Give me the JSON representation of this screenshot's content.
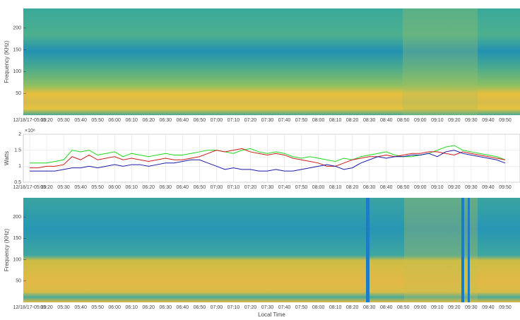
{
  "chart_data": [
    {
      "type": "spectrogram",
      "ylabel": "Frequency (KHz)",
      "ylim": [
        0,
        245
      ],
      "yticks": [
        50,
        100,
        150,
        200
      ],
      "xticks": [
        "12/18/17-05:10",
        "05:20",
        "05:30",
        "05:40",
        "05:50",
        "06:00",
        "06:10",
        "06:20",
        "06:30",
        "06:40",
        "06:50",
        "07:00",
        "07:10",
        "07:20",
        "07:30",
        "07:40",
        "07:50",
        "08:00",
        "08:10",
        "08:20",
        "08:30",
        "08:40",
        "08:50",
        "09:00",
        "09:10",
        "09:20",
        "09:30",
        "09:40",
        "09:50"
      ]
    },
    {
      "type": "line",
      "ylabel": "Watts",
      "y_multiplier": "×10⁸",
      "ylim": [
        0.5,
        2
      ],
      "yticks": [
        0.5,
        1,
        1.5,
        2
      ],
      "grid": true,
      "xticks": [
        "12/18/17-05:10",
        "05:20",
        "05:30",
        "05:40",
        "05:50",
        "06:00",
        "06:10",
        "06:20",
        "06:30",
        "06:40",
        "06:50",
        "07:00",
        "07:10",
        "07:20",
        "07:30",
        "07:40",
        "07:50",
        "08:00",
        "08:10",
        "08:20",
        "08:30",
        "08:40",
        "08:50",
        "09:00",
        "09:10",
        "09:20",
        "09:30",
        "09:40",
        "09:50"
      ],
      "series": [
        {
          "color": "#1fd81f",
          "values": [
            1.1,
            1.1,
            1.1,
            1.15,
            1.2,
            1.5,
            1.45,
            1.5,
            1.35,
            1.4,
            1.45,
            1.3,
            1.4,
            1.35,
            1.3,
            1.35,
            1.4,
            1.35,
            1.35,
            1.4,
            1.45,
            1.5,
            1.5,
            1.45,
            1.4,
            1.5,
            1.55,
            1.45,
            1.4,
            1.45,
            1.4,
            1.3,
            1.25,
            1.3,
            1.25,
            1.2,
            1.15,
            1.25,
            1.2,
            1.3,
            1.35,
            1.4,
            1.45,
            1.35,
            1.3,
            1.3,
            1.35,
            1.4,
            1.5,
            1.6,
            1.65,
            1.5,
            1.45,
            1.4,
            1.35,
            1.3,
            1.2
          ]
        },
        {
          "color": "#cc1a1a",
          "values": [
            0.95,
            0.95,
            1.0,
            1.0,
            1.05,
            1.3,
            1.2,
            1.35,
            1.2,
            1.25,
            1.3,
            1.2,
            1.25,
            1.2,
            1.15,
            1.2,
            1.25,
            1.2,
            1.2,
            1.25,
            1.3,
            1.4,
            1.5,
            1.45,
            1.5,
            1.55,
            1.45,
            1.4,
            1.35,
            1.4,
            1.35,
            1.25,
            1.2,
            1.15,
            1.1,
            1.0,
            1.0,
            1.1,
            1.2,
            1.25,
            1.3,
            1.3,
            1.35,
            1.3,
            1.35,
            1.4,
            1.4,
            1.45,
            1.45,
            1.4,
            1.35,
            1.45,
            1.4,
            1.35,
            1.3,
            1.25,
            1.2
          ]
        },
        {
          "color": "#1a1aaa",
          "values": [
            0.85,
            0.85,
            0.85,
            0.85,
            0.9,
            0.95,
            0.95,
            1.0,
            0.95,
            1.0,
            1.05,
            1.0,
            1.05,
            1.05,
            1.0,
            1.05,
            1.1,
            1.1,
            1.15,
            1.2,
            1.2,
            1.1,
            1.0,
            0.9,
            0.95,
            0.9,
            0.9,
            0.85,
            0.85,
            0.9,
            0.85,
            0.85,
            0.9,
            0.95,
            1.0,
            1.05,
            1.0,
            0.9,
            0.95,
            1.1,
            1.2,
            1.3,
            1.25,
            1.3,
            1.3,
            1.35,
            1.35,
            1.4,
            1.3,
            1.45,
            1.5,
            1.4,
            1.35,
            1.3,
            1.25,
            1.2,
            1.1
          ]
        }
      ]
    },
    {
      "type": "spectrogram",
      "ylabel": "Frequency (KHz)",
      "xlabel": "Local Time",
      "ylim": [
        0,
        245
      ],
      "yticks": [
        50,
        100,
        150,
        200
      ],
      "xticks": [
        "12/18/17-05:10",
        "05:20",
        "05:30",
        "05:40",
        "05:50",
        "06:00",
        "06:10",
        "06:20",
        "06:30",
        "06:40",
        "06:50",
        "07:00",
        "07:10",
        "07:20",
        "07:30",
        "07:40",
        "07:50",
        "08:00",
        "08:10",
        "08:20",
        "08:30",
        "08:40",
        "08:50",
        "09:00",
        "09:10",
        "09:20",
        "09:30",
        "09:40",
        "09:50"
      ]
    }
  ]
}
